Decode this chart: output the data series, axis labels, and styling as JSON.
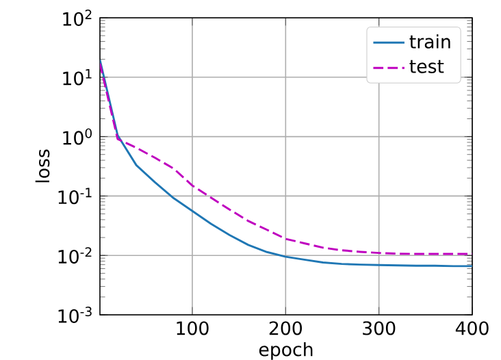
{
  "chart_data": {
    "type": "line",
    "xlabel": "epoch",
    "ylabel": "loss",
    "x": [
      1,
      20,
      40,
      60,
      80,
      100,
      120,
      140,
      160,
      180,
      200,
      220,
      240,
      260,
      280,
      300,
      320,
      340,
      360,
      380,
      400
    ],
    "series": [
      {
        "name": "train",
        "color": "#1f77b4",
        "line_style": "solid",
        "values": [
          19.5,
          1.05,
          0.33,
          0.17,
          0.092,
          0.056,
          0.034,
          0.022,
          0.015,
          0.0114,
          0.0095,
          0.0085,
          0.0076,
          0.0072,
          0.007,
          0.0069,
          0.0068,
          0.0067,
          0.0067,
          0.0066,
          0.0066
        ]
      },
      {
        "name": "test",
        "color": "#bf00bf",
        "line_style": "dashed",
        "values": [
          17,
          0.91,
          0.65,
          0.44,
          0.29,
          0.15,
          0.094,
          0.059,
          0.038,
          0.027,
          0.019,
          0.016,
          0.0135,
          0.0122,
          0.0115,
          0.011,
          0.0107,
          0.0106,
          0.0106,
          0.0106,
          0.0106
        ]
      }
    ],
    "xlim": [
      1,
      400
    ],
    "ylim": [
      0.001,
      100
    ],
    "xticks": [
      100,
      200,
      300,
      400
    ],
    "yticks": [
      {
        "value": 0.001,
        "label": "10$^{-3}$"
      },
      {
        "value": 0.01,
        "label": "10$^{-2}$"
      },
      {
        "value": 0.1,
        "label": "10$^{-1}$"
      },
      {
        "value": 1,
        "label": "10$^{0}$"
      },
      {
        "value": 10,
        "label": "10$^{1}$"
      },
      {
        "value": 100,
        "label": "10$^{2}$"
      }
    ],
    "log": "y",
    "grid": true,
    "legend": "top right",
    "marker": "none"
  }
}
